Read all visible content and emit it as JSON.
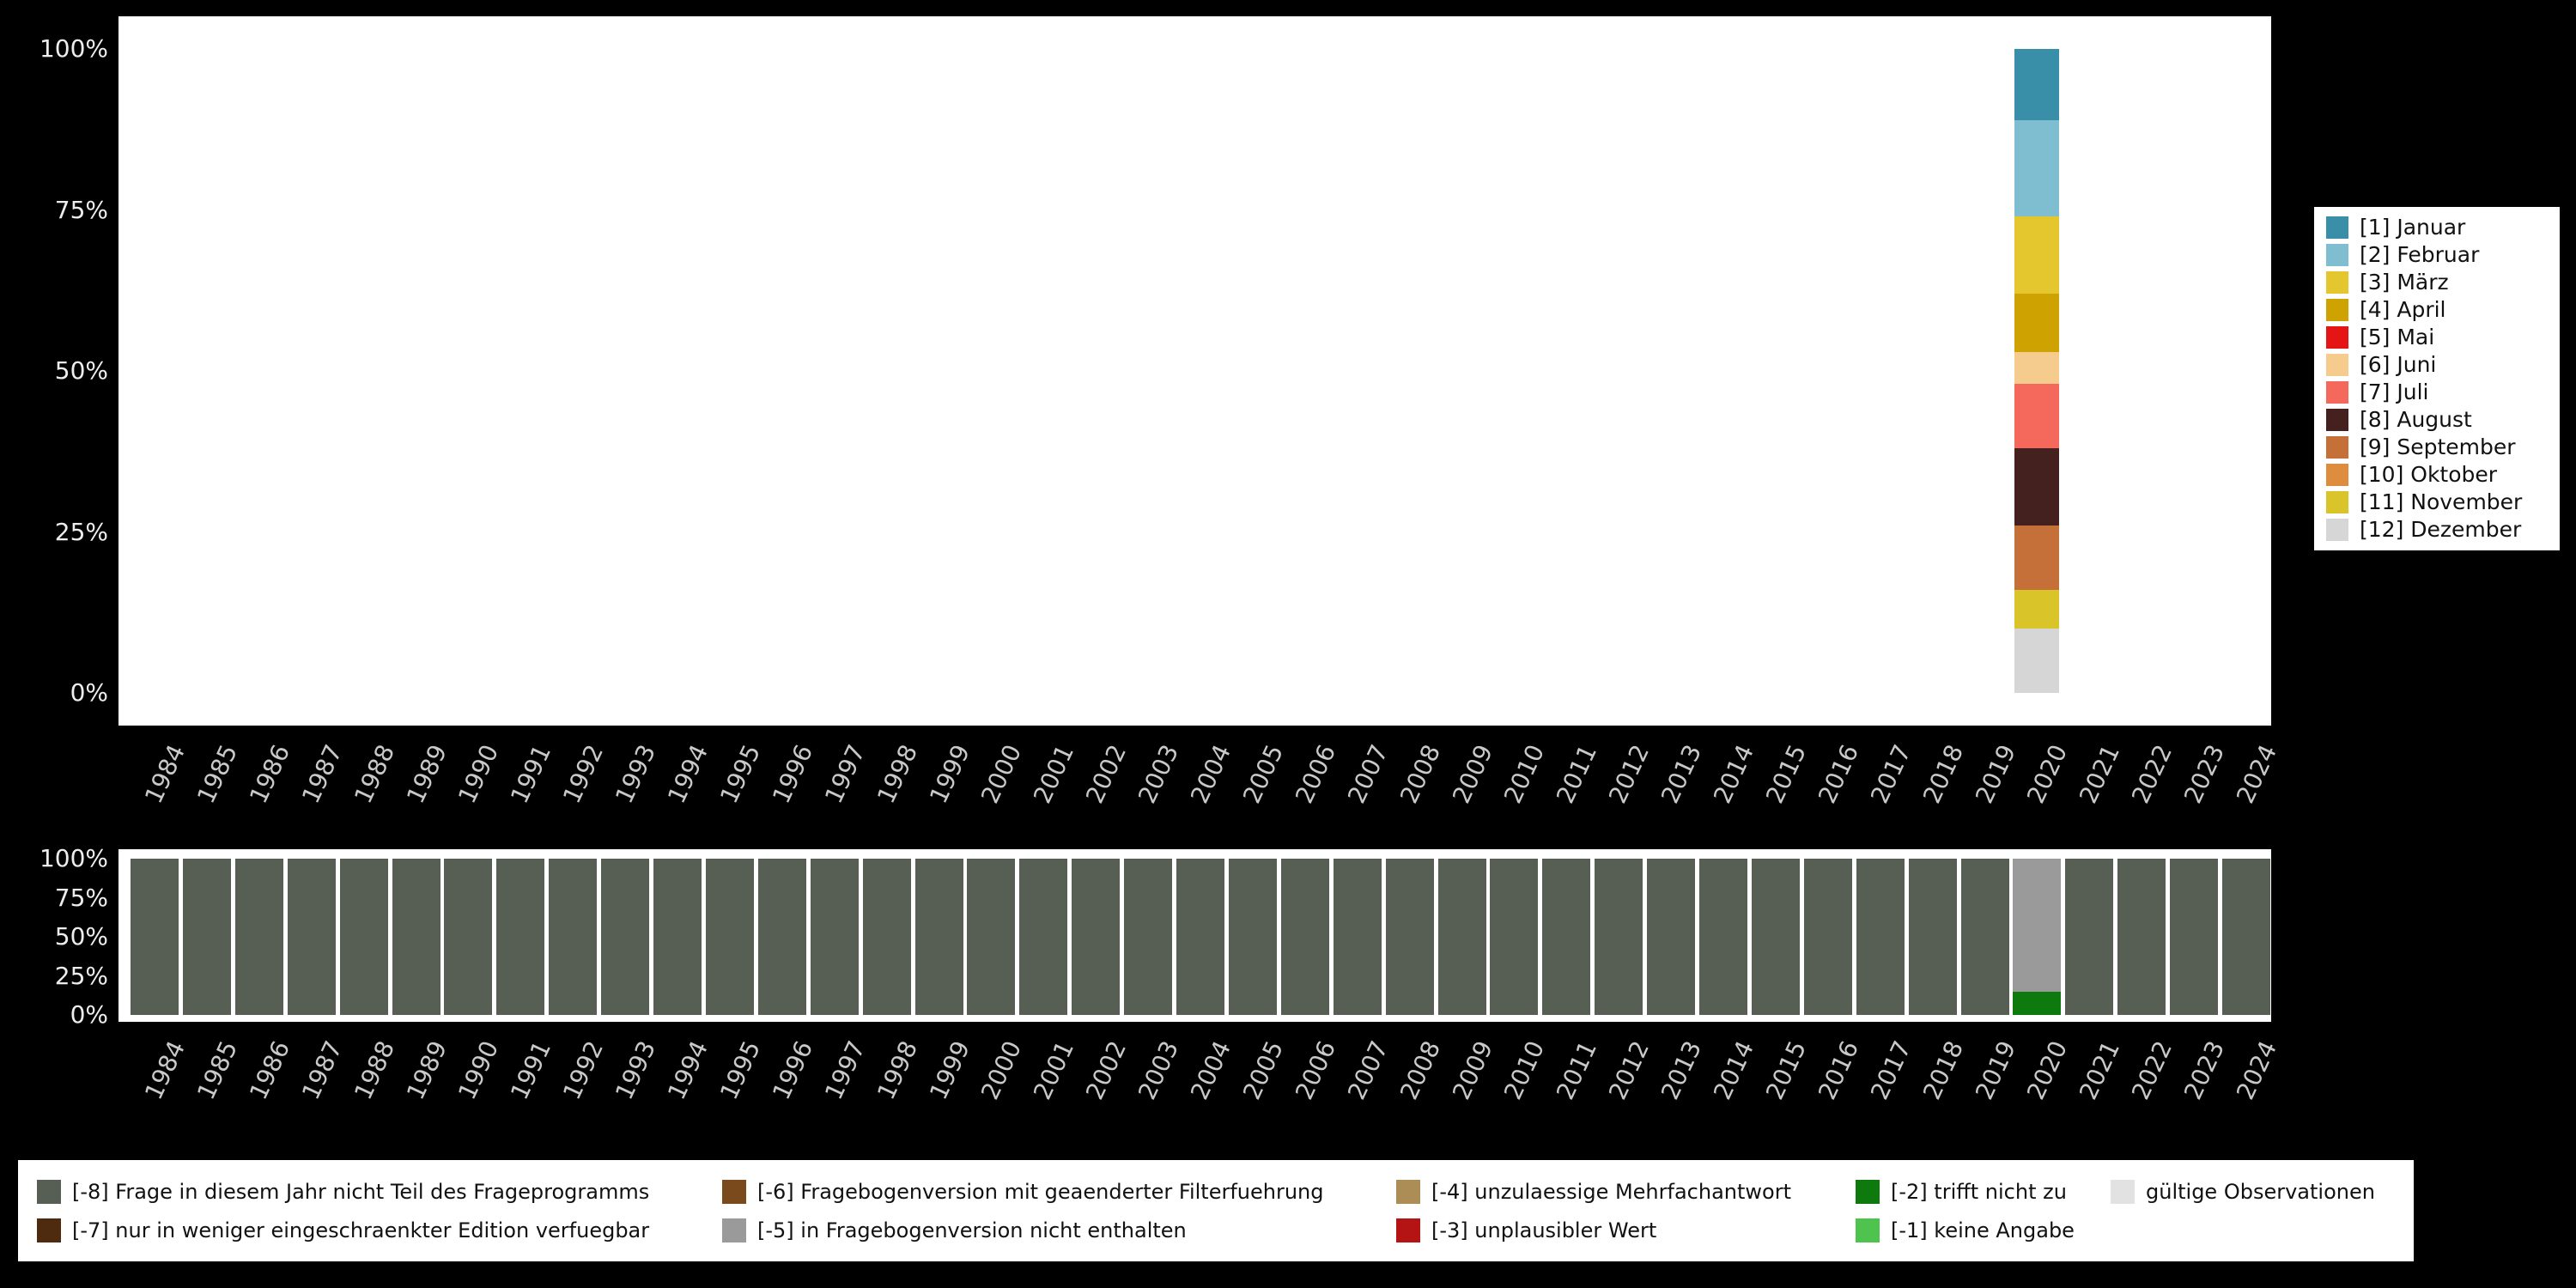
{
  "chart_data": [
    {
      "name": "interview-month-by-year",
      "type": "bar",
      "stacked": true,
      "grid": false,
      "legend_position": "right",
      "ylim": [
        0,
        100
      ],
      "yticks": [
        "100%",
        "75%",
        "50%",
        "25%",
        "0%"
      ],
      "categories": [
        1984,
        1985,
        1986,
        1987,
        1988,
        1989,
        1990,
        1991,
        1992,
        1993,
        1994,
        1995,
        1996,
        1997,
        1998,
        1999,
        2000,
        2001,
        2002,
        2003,
        2004,
        2005,
        2006,
        2007,
        2008,
        2009,
        2010,
        2011,
        2012,
        2013,
        2014,
        2015,
        2016,
        2017,
        2018,
        2019,
        2020,
        2021,
        2022,
        2023,
        2024
      ],
      "series": [
        {
          "label": "[1] Januar",
          "color": "#3A8FA8",
          "values": {
            "2020": 11
          }
        },
        {
          "label": "[2] Februar",
          "color": "#7FBDD1",
          "values": {
            "2020": 15
          }
        },
        {
          "label": "[3] März",
          "color": "#E4C62E",
          "values": {
            "2020": 12
          }
        },
        {
          "label": "[4] April",
          "color": "#CEA200",
          "values": {
            "2020": 9
          }
        },
        {
          "label": "[5] Mai",
          "color": "#E51515",
          "values": {
            "2020": 0
          }
        },
        {
          "label": "[6] Juni",
          "color": "#F6CB8E",
          "values": {
            "2020": 5
          }
        },
        {
          "label": "[7] Juli",
          "color": "#F4695C",
          "values": {
            "2020": 10
          }
        },
        {
          "label": "[8] August",
          "color": "#44201E",
          "values": {
            "2020": 12
          }
        },
        {
          "label": "[9] September",
          "color": "#C57038",
          "values": {
            "2020": 10
          }
        },
        {
          "label": "[10] Oktober",
          "color": "#DE8D3E",
          "values": {
            "2020": 0
          }
        },
        {
          "label": "[11] November",
          "color": "#D9C42A",
          "values": {
            "2020": 6
          }
        },
        {
          "label": "[12] Dezember",
          "color": "#D6D6D6",
          "values": {
            "2020": 10
          }
        }
      ]
    },
    {
      "name": "missing-codes-by-year",
      "type": "bar",
      "stacked": true,
      "grid": false,
      "legend_position": "bottom",
      "ylim": [
        0,
        100
      ],
      "yticks": [
        "100%",
        "75%",
        "50%",
        "25%",
        "0%"
      ],
      "categories": [
        1984,
        1985,
        1986,
        1987,
        1988,
        1989,
        1990,
        1991,
        1992,
        1993,
        1994,
        1995,
        1996,
        1997,
        1998,
        1999,
        2000,
        2001,
        2002,
        2003,
        2004,
        2005,
        2006,
        2007,
        2008,
        2009,
        2010,
        2011,
        2012,
        2013,
        2014,
        2015,
        2016,
        2017,
        2018,
        2019,
        2020,
        2021,
        2022,
        2023,
        2024
      ],
      "series": [
        {
          "label": "[-8] Frage in diesem Jahr nicht Teil des Frageprogramms",
          "color": "#575F55",
          "values": {
            "default": 100,
            "2020": 0
          }
        },
        {
          "label": "[-5] in Fragebogenversion nicht enthalten",
          "color": "#9A9A9A",
          "values": {
            "default": 0,
            "2020": 85
          }
        },
        {
          "label": "[-2] trifft nicht zu",
          "color": "#0E7A0E",
          "values": {
            "default": 0,
            "2020": 15
          }
        }
      ]
    }
  ],
  "missing_legend": {
    "items": [
      {
        "label": "[-8] Frage in diesem Jahr nicht Teil des Frageprogramms",
        "color": "#575F55"
      },
      {
        "label": "[-7] nur in weniger eingeschraenkter Edition verfuegbar",
        "color": "#4E2A0E"
      },
      {
        "label": "[-6] Fragebogenversion mit geaenderter Filterfuehrung",
        "color": "#7B4A1C"
      },
      {
        "label": "[-5] in Fragebogenversion nicht enthalten",
        "color": "#9A9A9A"
      },
      {
        "label": "[-4] unzulaessige Mehrfachantwort",
        "color": "#AB8D55"
      },
      {
        "label": "[-3] unplausibler Wert",
        "color": "#B51414"
      },
      {
        "label": "[-2] trifft nicht zu",
        "color": "#0E7A0E"
      },
      {
        "label": "[-1] keine Angabe",
        "color": "#4EC44E"
      },
      {
        "label": "gültige Observationen",
        "color": "#E2E2E2"
      }
    ]
  },
  "colors": {
    "page_background": "#000000",
    "plot_background": "#FFFFFF",
    "axis_text": "#C9C9C9",
    "ytick_text": "#EDEDED"
  }
}
